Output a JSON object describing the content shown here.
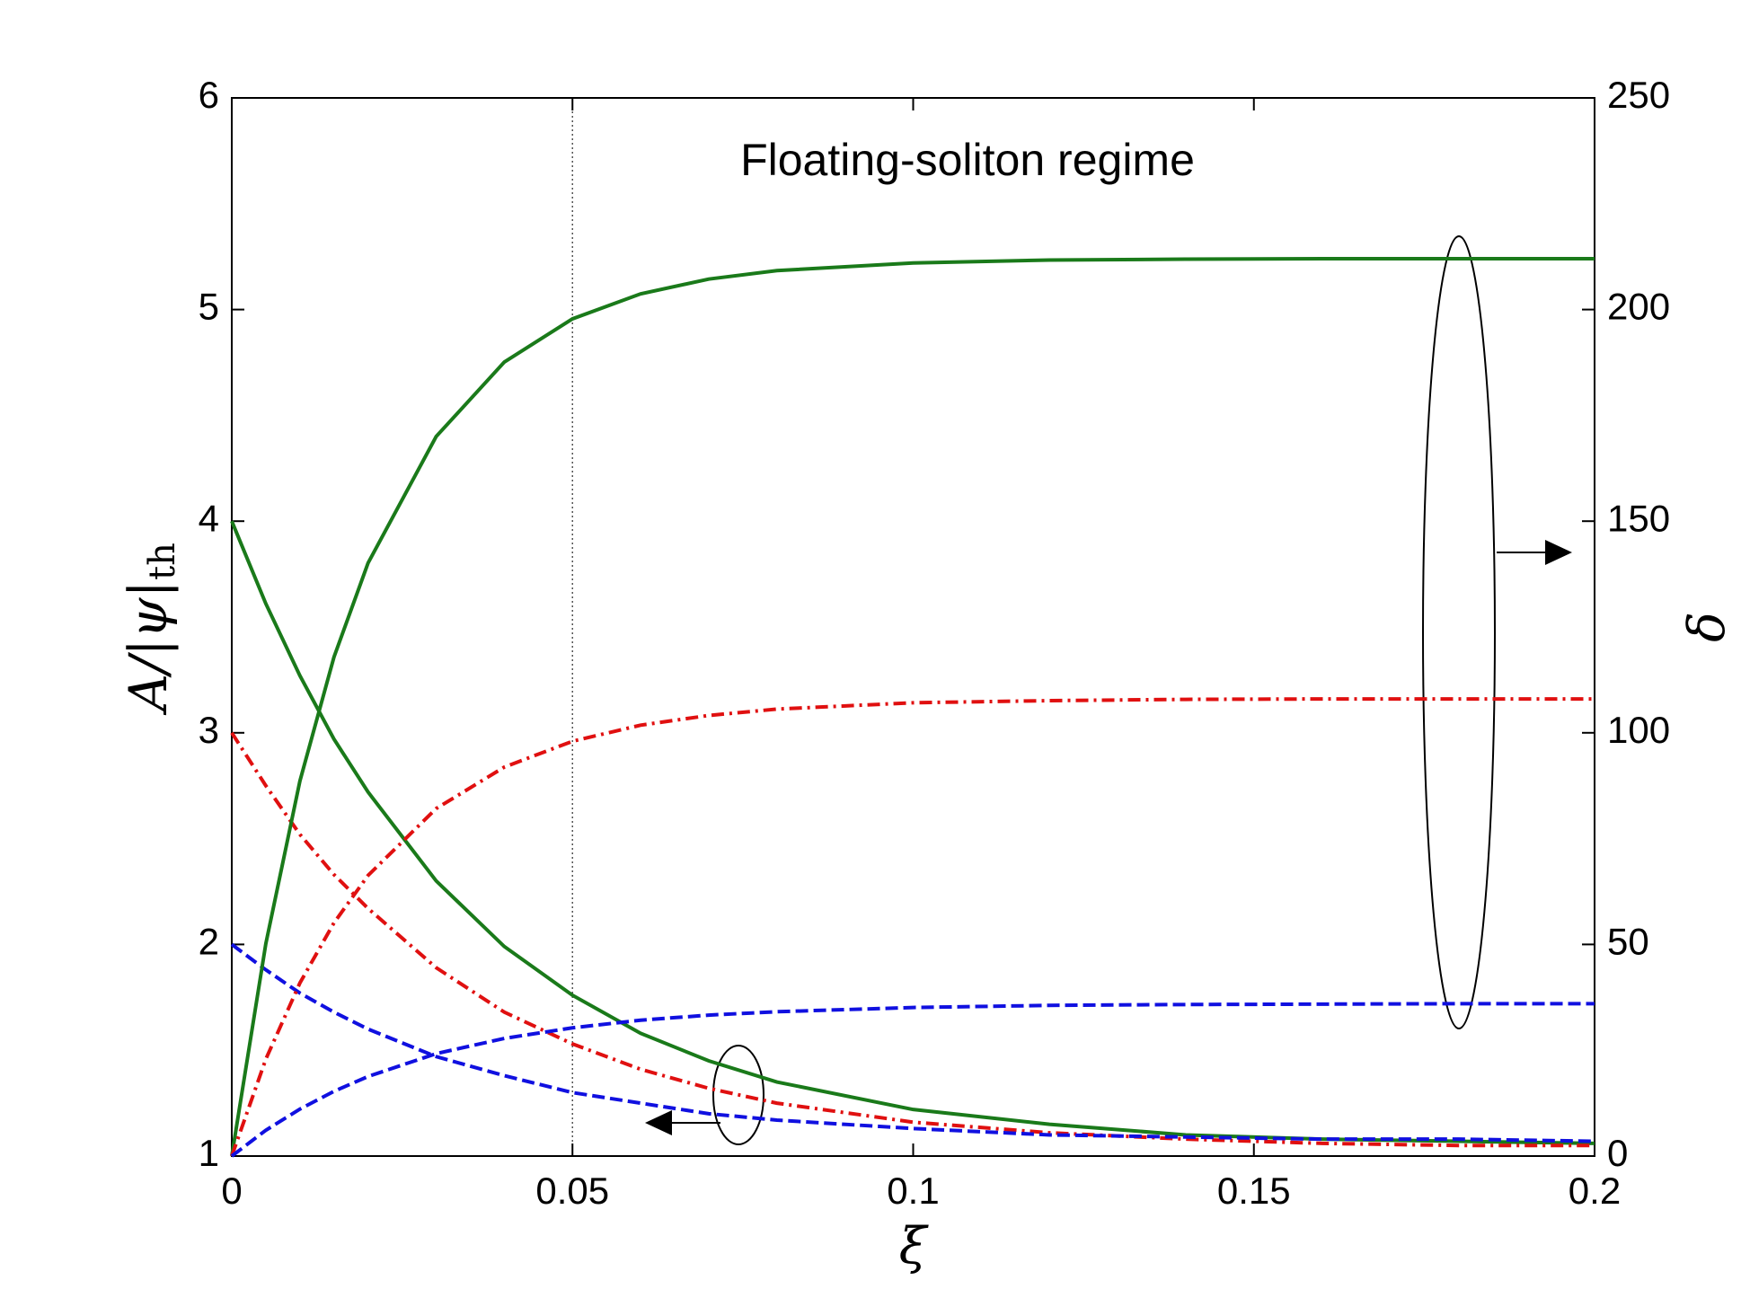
{
  "chart_data": {
    "type": "line",
    "annotation": "Floating-soliton regime",
    "xlabel": "ξ",
    "ylabel": "A/|ψ|",
    "ylabel_sub": "th",
    "y2label": "δ",
    "xlim": [
      0,
      0.2
    ],
    "xticks": [
      0,
      0.05,
      0.1,
      0.15,
      0.2
    ],
    "ylim": [
      1,
      6
    ],
    "yticks": [
      1,
      2,
      3,
      4,
      5,
      6
    ],
    "y2lim": [
      0,
      250
    ],
    "y2ticks": [
      0,
      50,
      100,
      150,
      200,
      250
    ],
    "vline": 0.05,
    "x": [
      0,
      0.005,
      0.01,
      0.015,
      0.02,
      0.03,
      0.04,
      0.05,
      0.06,
      0.07,
      0.08,
      0.1,
      0.12,
      0.14,
      0.16,
      0.18,
      0.2
    ],
    "series": [
      {
        "color": "#1a7a1a",
        "dash": "solid",
        "values": [
          4.0,
          3.61,
          3.27,
          2.97,
          2.72,
          2.3,
          1.99,
          1.76,
          1.58,
          1.45,
          1.35,
          1.22,
          1.15,
          1.1,
          1.08,
          1.07,
          1.06
        ]
      },
      {
        "color": "#e01010",
        "dash": "dashdot",
        "values": [
          3.0,
          2.75,
          2.52,
          2.33,
          2.17,
          1.89,
          1.68,
          1.53,
          1.41,
          1.32,
          1.25,
          1.16,
          1.11,
          1.08,
          1.06,
          1.05,
          1.05
        ]
      },
      {
        "color": "#1010e0",
        "dash": "dashed",
        "values": [
          2.0,
          1.88,
          1.77,
          1.68,
          1.6,
          1.47,
          1.38,
          1.3,
          1.25,
          1.2,
          1.17,
          1.13,
          1.1,
          1.09,
          1.08,
          1.08,
          1.07
        ]
      },
      {
        "color": "#1a7a1a",
        "dash": "solid",
        "axis": "y2",
        "values": [
          0,
          50.2,
          88.6,
          117.9,
          140.1,
          170.0,
          187.6,
          197.8,
          203.7,
          207.2,
          209.2,
          211.0,
          211.7,
          211.9,
          212,
          212,
          212
        ]
      },
      {
        "color": "#e01010",
        "dash": "dashdot",
        "axis": "y2",
        "values": [
          0,
          22.9,
          40.9,
          55.1,
          66.3,
          82.1,
          91.9,
          98.0,
          101.8,
          104.1,
          105.6,
          107.1,
          107.6,
          107.9,
          108,
          108,
          108
        ]
      },
      {
        "color": "#1010e0",
        "dash": "dashed",
        "axis": "y2",
        "values": [
          0,
          6.1,
          11.1,
          15.3,
          18.8,
          24.2,
          27.8,
          30.3,
          32.1,
          33.3,
          34.1,
          35.1,
          35.6,
          35.8,
          35.9,
          36.0,
          36.0
        ]
      }
    ]
  }
}
